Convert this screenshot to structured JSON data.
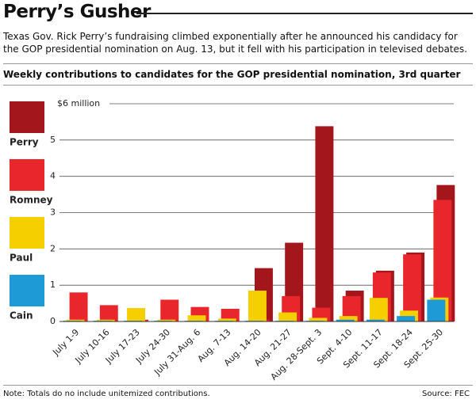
{
  "chart_data": {
    "type": "bar",
    "title": "Perry’s Gusher",
    "subtitle": "Texas Gov. Rick Perry’s fundraising climbed exponentially after he announced his candidacy for the GOP presidential nomination on Aug. 13, but it fell with his participation in televised debates.",
    "chart_title": "Weekly contributions to candidates for the GOP presidential nomination, 3rd quarter",
    "note": "Note: Totals do no include unitemized contributions.",
    "source": "Source: FEC",
    "categories": [
      "July 1-9",
      "July 10-16",
      "July 17-23",
      "July 24-30",
      "July 31-Aug. 6",
      "Aug. 7-13",
      "Aug. 14-20",
      "Aug. 21-27",
      "Aug. 28-Sept. 3",
      "Sept. 4-10",
      "Sept. 11-17",
      "Sept. 18-24",
      "Sept. 25-30"
    ],
    "series": [
      {
        "name": "Perry",
        "color": "#a3161b",
        "values": [
          0,
          0,
          0,
          0,
          0,
          0,
          1.47,
          2.17,
          5.38,
          0.85,
          1.4,
          1.9,
          3.76
        ]
      },
      {
        "name": "Romney",
        "color": "#e8262b",
        "values": [
          0.8,
          0.45,
          0.05,
          0.6,
          0.4,
          0.35,
          0.05,
          0.7,
          0.38,
          0.7,
          1.35,
          1.85,
          3.35
        ]
      },
      {
        "name": "Paul",
        "color": "#f5cf00",
        "values": [
          0.05,
          0.05,
          0.37,
          0.05,
          0.17,
          0.08,
          0.85,
          0.25,
          0.1,
          0.15,
          0.65,
          0.3,
          0.66
        ]
      },
      {
        "name": "Cain",
        "color": "#1e9ad6",
        "values": [
          0.02,
          0.02,
          0.02,
          0.02,
          0.02,
          0.02,
          0.02,
          0.02,
          0.02,
          0.05,
          0.05,
          0.15,
          0.6
        ]
      }
    ],
    "ylim": [
      0,
      6
    ],
    "yticks": [
      0,
      1,
      2,
      3,
      4,
      5,
      {
        "value": 6,
        "label": "$6 million"
      }
    ],
    "grid": true
  }
}
